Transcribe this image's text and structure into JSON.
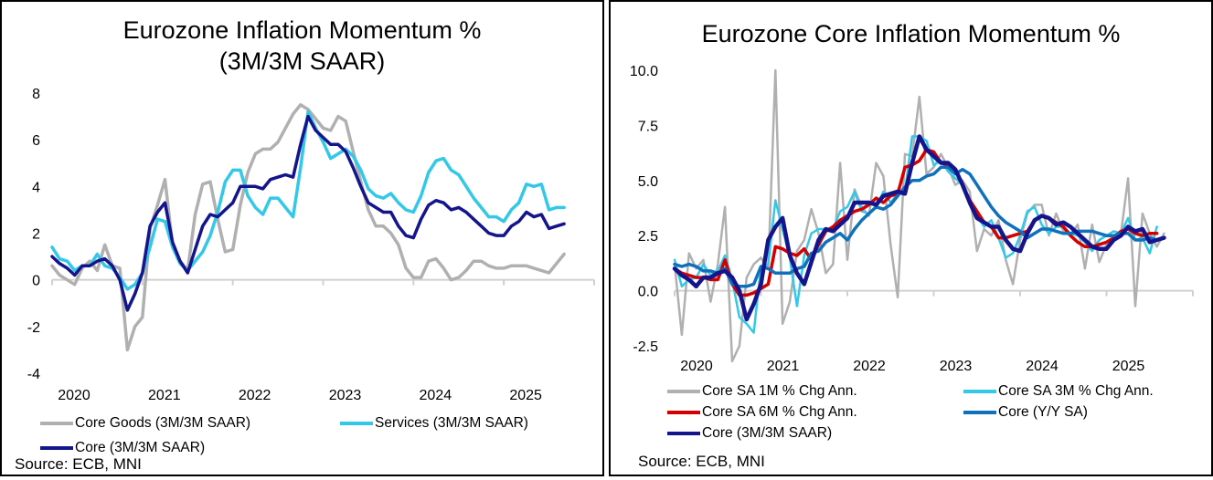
{
  "chart_data": [
    {
      "type": "line",
      "title": "Eurozone Inflation Momentum %",
      "subtitle": "(3M/3M SAAR)",
      "xlabel": "",
      "ylabel": "",
      "ylim": [
        -4,
        8
      ],
      "yticks": [
        "8",
        "6",
        "4",
        "2",
        "0",
        "-2",
        "-4"
      ],
      "ytick_values": [
        8,
        6,
        4,
        2,
        0,
        -2,
        -4
      ],
      "xticks": [
        "2020",
        "2021",
        "2022",
        "2023",
        "2024",
        "2025"
      ],
      "x_start": "2020-01",
      "x_end_axis": "2026-01",
      "frequency": "monthly",
      "grid": false,
      "legend_position": "bottom",
      "series": [
        {
          "name": "Core Goods (3M/3M SAAR)",
          "color": "#b0b0b0",
          "width": 3.5,
          "values": [
            0.6,
            0.2,
            0.0,
            -0.2,
            0.5,
            0.8,
            0.4,
            1.5,
            0.6,
            0.5,
            -3.0,
            -2.0,
            -1.6,
            2.2,
            3.2,
            4.3,
            1.5,
            0.8,
            0.4,
            2.8,
            4.1,
            4.2,
            2.6,
            1.2,
            1.3,
            3.2,
            4.6,
            5.4,
            5.6,
            5.6,
            5.9,
            6.5,
            7.1,
            7.5,
            7.3,
            6.9,
            6.5,
            6.4,
            7.0,
            6.8,
            5.5,
            4.2,
            3.0,
            2.3,
            2.3,
            2.0,
            1.5,
            0.5,
            0.1,
            0.1,
            0.8,
            0.9,
            0.5,
            0.0,
            0.1,
            0.4,
            0.8,
            0.8,
            0.6,
            0.5,
            0.5,
            0.6,
            0.6,
            0.6,
            0.5,
            0.4,
            0.3,
            0.7,
            1.1
          ]
        },
        {
          "name": "Services (3M/3M SAAR)",
          "color": "#33c8e8",
          "width": 3.5,
          "values": [
            1.4,
            0.9,
            0.8,
            0.4,
            0.6,
            0.6,
            1.1,
            0.6,
            0.5,
            0.1,
            -0.4,
            -0.2,
            0.3,
            1.4,
            2.6,
            2.5,
            1.4,
            0.7,
            0.4,
            0.8,
            1.2,
            1.9,
            2.9,
            4.2,
            4.7,
            4.7,
            3.6,
            3.1,
            2.8,
            3.5,
            3.5,
            3.1,
            2.7,
            4.8,
            7.2,
            6.5,
            5.9,
            5.2,
            5.4,
            5.6,
            5.3,
            4.7,
            3.9,
            3.6,
            3.5,
            3.7,
            3.3,
            3.0,
            2.9,
            3.6,
            4.6,
            5.1,
            5.2,
            4.7,
            4.5,
            4.0,
            3.5,
            3.1,
            2.7,
            2.7,
            2.5,
            3.0,
            3.3,
            4.1,
            4.0,
            4.1,
            3.0,
            3.1,
            3.1
          ]
        },
        {
          "name": "Core (3M/3M SAAR)",
          "color": "#14148c",
          "width": 3.5,
          "values": [
            1.0,
            0.7,
            0.5,
            0.2,
            0.6,
            0.6,
            0.8,
            0.9,
            0.6,
            0.0,
            -1.3,
            -0.6,
            0.3,
            2.3,
            2.9,
            3.3,
            1.6,
            0.8,
            0.3,
            1.3,
            2.3,
            2.8,
            2.7,
            3.0,
            3.3,
            4.0,
            4.0,
            4.0,
            3.9,
            4.3,
            4.4,
            4.5,
            4.4,
            5.8,
            7.0,
            6.4,
            6.1,
            5.8,
            5.8,
            5.5,
            4.8,
            4.0,
            3.3,
            3.1,
            2.9,
            2.9,
            2.3,
            1.9,
            1.8,
            2.6,
            3.2,
            3.4,
            3.3,
            3.0,
            3.1,
            2.9,
            2.6,
            2.3,
            2.0,
            1.9,
            1.9,
            2.3,
            2.5,
            2.9,
            2.7,
            2.8,
            2.2,
            2.3,
            2.4
          ]
        }
      ],
      "source": "Source: ECB, MNI"
    },
    {
      "type": "line",
      "title": "Eurozone Core Inflation Momentum %",
      "xlabel": "",
      "ylabel": "",
      "ylim": [
        -2.5,
        10.0
      ],
      "yticks": [
        "10.0",
        "7.5",
        "5.0",
        "2.5",
        "0.0",
        "-2.5"
      ],
      "ytick_values": [
        10.0,
        7.5,
        5.0,
        2.5,
        0.0,
        -2.5
      ],
      "xticks": [
        "2020",
        "2021",
        "2022",
        "2023",
        "2024",
        "2025"
      ],
      "x_start": "2020-01",
      "x_end_axis": "2026-01",
      "frequency": "monthly",
      "grid": false,
      "legend_position": "bottom",
      "series": [
        {
          "name": "Core SA 1M % Chg Ann.",
          "color": "#b0b0b0",
          "width": 2.5,
          "values": [
            1.2,
            -2.0,
            1.7,
            1.0,
            1.4,
            -0.5,
            1.2,
            3.8,
            -3.2,
            -2.5,
            0.6,
            1.2,
            1.5,
            1.0,
            10.0,
            -1.5,
            -0.5,
            1.8,
            2.3,
            3.7,
            2.6,
            0.8,
            1.2,
            5.8,
            1.4,
            4.6,
            3.8,
            3.4,
            5.8,
            5.2,
            2.1,
            -0.3,
            6.2,
            6.1,
            8.8,
            5.3,
            5.6,
            6.2,
            5.6,
            4.8,
            5.0,
            4.5,
            1.8,
            2.8,
            2.5,
            3.2,
            1.4,
            0.3,
            2.3,
            3.5,
            3.9,
            3.9,
            2.5,
            3.5,
            2.7,
            2.5,
            3.0,
            1.0,
            3.0,
            1.3,
            2.1,
            2.4,
            2.6,
            5.1,
            -0.7,
            3.5,
            2.6,
            2.0,
            2.6
          ]
        },
        {
          "name": "Core SA 3M % Chg Ann.",
          "color": "#33c8e8",
          "width": 2.5,
          "values": [
            1.4,
            0.2,
            0.5,
            0.6,
            1.2,
            0.7,
            0.9,
            1.6,
            0.5,
            -1.2,
            -1.5,
            -1.9,
            1.1,
            1.2,
            4.1,
            2.8,
            1.5,
            -0.7,
            1.6,
            2.6,
            2.8,
            2.8,
            2.8,
            3.6,
            3.8,
            4.5,
            3.6,
            3.5,
            3.8,
            4.5,
            4.0,
            4.4,
            4.5,
            7.0,
            7.0,
            6.8,
            5.7,
            5.9,
            5.4,
            5.1,
            4.8,
            3.9,
            3.4,
            2.9,
            3.2,
            2.4,
            1.5,
            1.7,
            2.5,
            3.6,
            3.8,
            3.0,
            2.6,
            2.9,
            2.9,
            2.6,
            2.5,
            2.2,
            1.8,
            2.3,
            2.5,
            2.7,
            2.6,
            3.3,
            2.3,
            2.4,
            1.7,
            2.9
          ]
        },
        {
          "name": "Core SA 6M % Chg Ann.",
          "color": "#d40000",
          "width": 3.5,
          "values": [
            1.0,
            0.8,
            0.7,
            0.6,
            0.6,
            0.5,
            0.5,
            1.4,
            0.3,
            -0.2,
            -0.2,
            -0.1,
            0.1,
            0.3,
            2.0,
            1.9,
            1.7,
            1.6,
            1.9,
            1.4,
            2.1,
            2.7,
            2.9,
            3.2,
            3.4,
            3.6,
            3.7,
            3.9,
            4.2,
            4.0,
            4.3,
            4.4,
            5.6,
            5.7,
            5.9,
            6.4,
            6.3,
            5.8,
            5.7,
            5.5,
            4.8,
            4.1,
            3.6,
            3.1,
            2.9,
            2.4,
            2.4,
            2.5,
            2.6,
            2.7,
            3.2,
            3.4,
            3.3,
            3.1,
            2.9,
            2.5,
            2.2,
            2.0,
            2.0,
            2.1,
            2.2,
            2.4,
            2.7,
            2.8,
            2.6,
            2.5,
            2.6,
            2.6
          ]
        },
        {
          "name": "Core (Y/Y SA)",
          "color": "#0f70bc",
          "width": 3.5,
          "values": [
            1.2,
            1.1,
            1.2,
            1.1,
            0.9,
            0.9,
            0.8,
            1.0,
            0.3,
            0.2,
            0.2,
            0.3,
            1.1,
            1.0,
            0.8,
            0.8,
            0.8,
            1.0,
            1.1,
            1.7,
            1.8,
            2.2,
            2.4,
            2.6,
            2.3,
            2.8,
            3.2,
            3.5,
            3.8,
            3.7,
            3.9,
            4.3,
            4.7,
            5.0,
            5.0,
            5.2,
            5.3,
            5.6,
            5.6,
            5.3,
            5.5,
            5.3,
            4.8,
            4.3,
            3.8,
            3.4,
            3.1,
            2.9,
            2.7,
            2.4,
            2.6,
            2.8,
            2.8,
            2.7,
            2.6,
            2.6,
            2.7,
            2.7,
            2.7,
            2.6,
            2.5,
            2.5,
            2.6,
            2.6,
            2.3,
            2.3,
            2.4,
            2.3
          ]
        },
        {
          "name": "Core (3M/3M SAAR)",
          "color": "#14148c",
          "width": 4.5,
          "values": [
            1.0,
            0.7,
            0.5,
            0.2,
            0.6,
            0.6,
            0.8,
            0.9,
            0.6,
            0.0,
            -1.3,
            -0.6,
            0.3,
            2.3,
            2.9,
            3.3,
            1.6,
            0.8,
            0.3,
            1.3,
            2.3,
            2.8,
            2.7,
            3.0,
            3.3,
            4.0,
            4.0,
            4.0,
            3.9,
            4.3,
            4.4,
            4.5,
            4.4,
            5.8,
            7.0,
            6.4,
            6.1,
            5.8,
            5.8,
            5.5,
            4.8,
            4.0,
            3.3,
            3.1,
            2.9,
            2.9,
            2.3,
            1.9,
            1.8,
            2.6,
            3.2,
            3.4,
            3.3,
            3.0,
            3.1,
            2.9,
            2.6,
            2.3,
            2.0,
            1.9,
            1.9,
            2.3,
            2.5,
            2.9,
            2.7,
            2.8,
            2.2,
            2.3,
            2.4
          ]
        }
      ],
      "source": "Source: ECB, MNI"
    }
  ]
}
